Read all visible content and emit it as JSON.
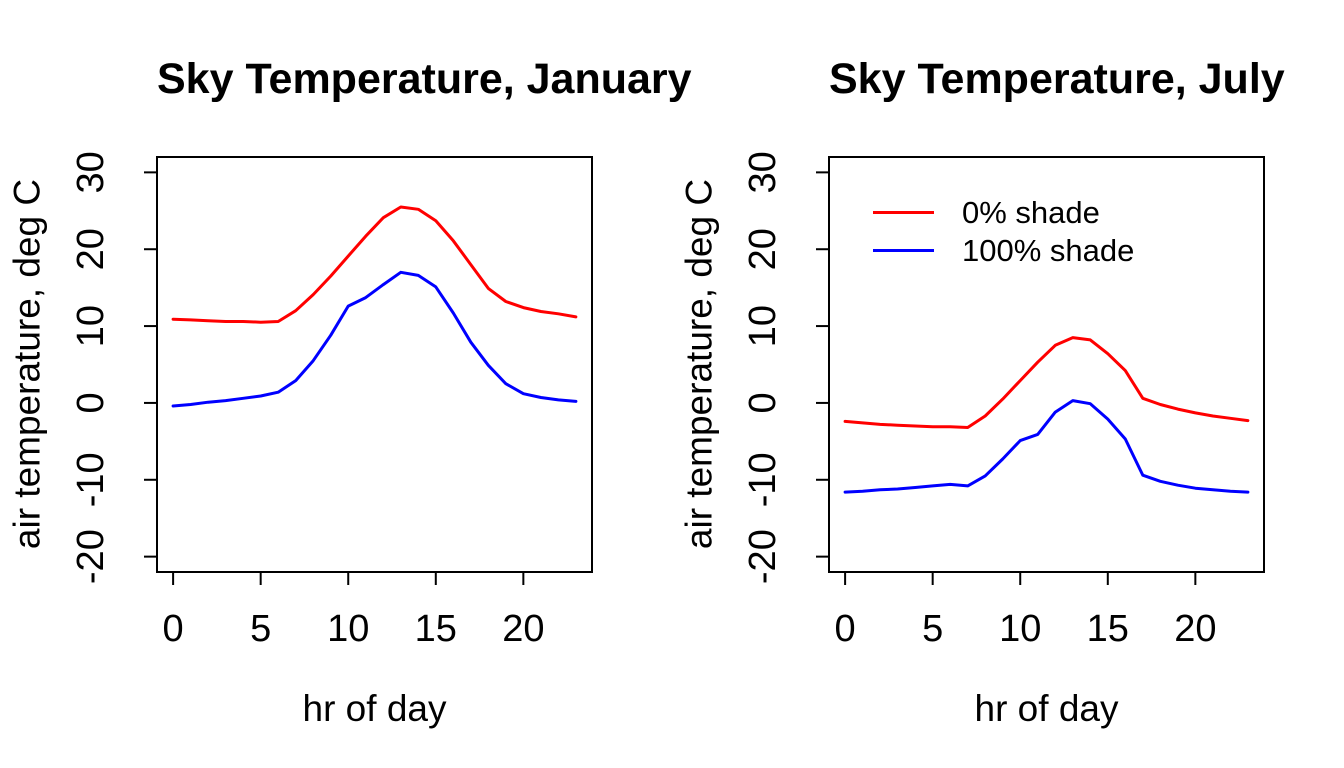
{
  "figure": {
    "background": "#ffffff",
    "text_color": "#000000"
  },
  "chart_data": [
    {
      "type": "line",
      "title": "Sky Temperature, January",
      "xlabel": "hr of day",
      "ylabel": "air temperature, deg C",
      "xlim": [
        0,
        23
      ],
      "ylim": [
        -20,
        30
      ],
      "x_ticks": [
        0,
        5,
        10,
        15,
        20
      ],
      "y_ticks": [
        -20,
        -10,
        0,
        10,
        20,
        30
      ],
      "grid": false,
      "legend_visible": false,
      "x": [
        0,
        1,
        2,
        3,
        4,
        5,
        6,
        7,
        8,
        9,
        10,
        11,
        12,
        13,
        14,
        15,
        16,
        17,
        18,
        19,
        20,
        21,
        22,
        23
      ],
      "series": [
        {
          "name": "0% shade",
          "color": "#ff0000",
          "values": [
            10.9,
            10.8,
            10.7,
            10.6,
            10.6,
            10.5,
            10.6,
            12.0,
            14.1,
            16.5,
            19.1,
            21.7,
            24.1,
            25.5,
            25.2,
            23.7,
            21.1,
            18.0,
            14.9,
            13.2,
            12.4,
            11.9,
            11.6,
            11.2
          ]
        },
        {
          "name": "100% shade",
          "color": "#0000ff",
          "values": [
            -0.4,
            -0.2,
            0.1,
            0.3,
            0.6,
            0.9,
            1.4,
            2.9,
            5.5,
            8.8,
            12.6,
            13.7,
            15.4,
            17.0,
            16.6,
            15.1,
            11.7,
            7.9,
            4.9,
            2.5,
            1.2,
            0.7,
            0.4,
            0.2
          ]
        }
      ]
    },
    {
      "type": "line",
      "title": "Sky Temperature, July",
      "xlabel": "hr of day",
      "ylabel": "air temperature, deg C",
      "xlim": [
        0,
        23
      ],
      "ylim": [
        -20,
        30
      ],
      "x_ticks": [
        0,
        5,
        10,
        15,
        20
      ],
      "y_ticks": [
        -20,
        -10,
        0,
        10,
        20,
        30
      ],
      "grid": false,
      "legend_visible": true,
      "legend_position": "top-left-inside",
      "x": [
        0,
        1,
        2,
        3,
        4,
        5,
        6,
        7,
        8,
        9,
        10,
        11,
        12,
        13,
        14,
        15,
        16,
        17,
        18,
        19,
        20,
        21,
        22,
        23
      ],
      "series": [
        {
          "name": "0% shade",
          "color": "#ff0000",
          "values": [
            -2.4,
            -2.6,
            -2.8,
            -2.9,
            -3.0,
            -3.1,
            -3.1,
            -3.2,
            -1.7,
            0.5,
            2.9,
            5.3,
            7.5,
            8.5,
            8.2,
            6.4,
            4.2,
            0.6,
            -0.2,
            -0.8,
            -1.3,
            -1.7,
            -2.0,
            -2.3
          ]
        },
        {
          "name": "100% shade",
          "color": "#0000ff",
          "values": [
            -11.6,
            -11.5,
            -11.3,
            -11.2,
            -11.0,
            -10.8,
            -10.6,
            -10.8,
            -9.5,
            -7.3,
            -4.9,
            -4.1,
            -1.2,
            0.3,
            -0.1,
            -2.1,
            -4.7,
            -9.4,
            -10.2,
            -10.7,
            -11.1,
            -11.3,
            -11.5,
            -11.6
          ]
        }
      ]
    }
  ]
}
